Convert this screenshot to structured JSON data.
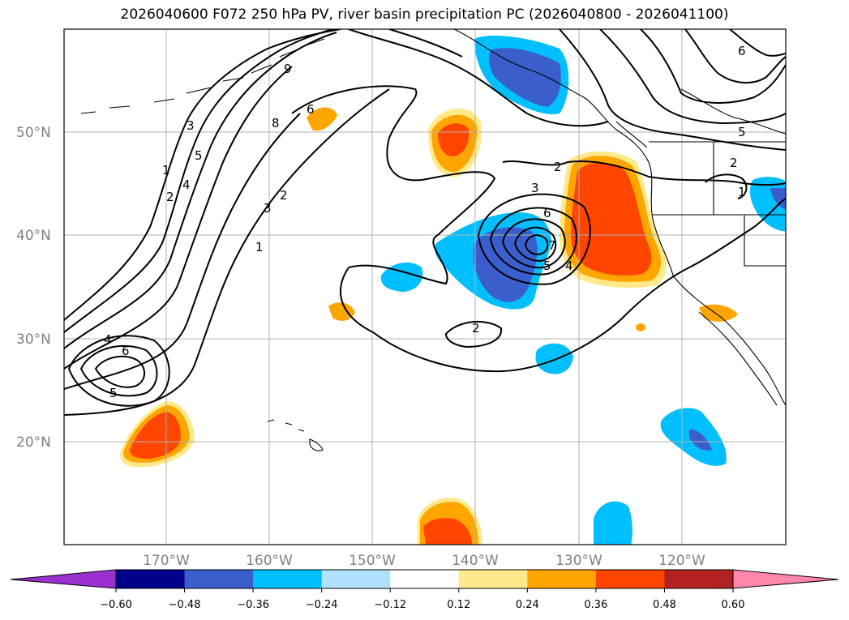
{
  "title": "2026040600 F072 250 hPa PV, river basin precipitation PC (2026040800 - 2026041100)",
  "latitude_labels": [
    "50°N",
    "40°N",
    "30°N",
    "20°N"
  ],
  "longitude_labels": [
    "170°W",
    "160°W",
    "150°W",
    "140°W",
    "130°W",
    "120°W"
  ],
  "colorbar": {
    "ticks": [
      "−0.60",
      "−0.48",
      "−0.36",
      "−0.24",
      "−0.12",
      "0.12",
      "0.24",
      "0.36",
      "0.48",
      "0.60"
    ],
    "colors": [
      "#9b30d0",
      "#00008b",
      "#3a5fcd",
      "#00bfff",
      "#b0e2ff",
      "#ffffff",
      "#ffe98a",
      "#ffa500",
      "#ff4500",
      "#b22222",
      "#ff88aa"
    ]
  },
  "contour_labels": [
    "1",
    "2",
    "3",
    "4",
    "5",
    "6",
    "8",
    "9",
    "1",
    "2",
    "3",
    "4",
    "5",
    "6",
    "6",
    "5",
    "4",
    "2",
    "1",
    "2",
    "3",
    "6",
    "7",
    "5",
    "4",
    "2"
  ]
}
